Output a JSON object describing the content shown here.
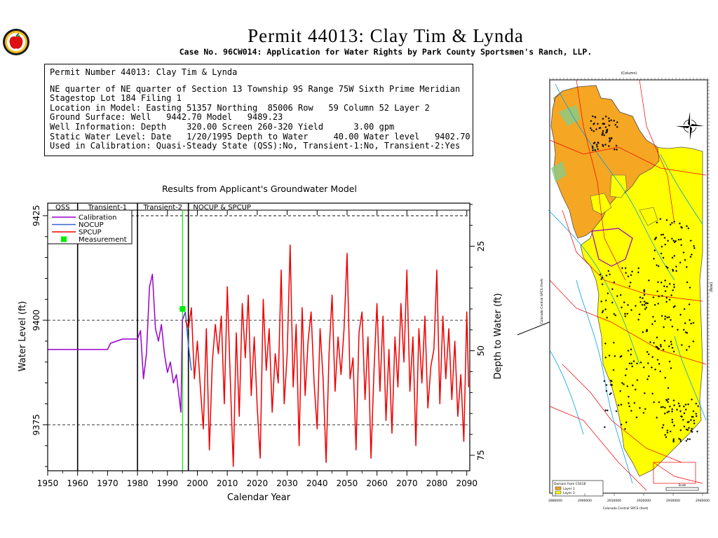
{
  "header": {
    "title": "Permit  44013:   Clay Tim & Lynda",
    "subtitle": "Case No. 96CW014: Application for Water Rights by Park County Sportsmen's Ranch, LLP.",
    "logo_icon": "apple-seal-icon"
  },
  "info_box": {
    "lines": [
      "Permit Number 44013: Clay Tim & Lynda",
      "NE quarter of NE quarter of Section 13 Township 9S Range 75W Sixth Prime Meridian",
      "Stagestop Lot 184 Filing 1",
      "Location in Model: Easting 51357 Northing  85006 Row   59 Column 52 Layer 2",
      "Ground Surface: Well   9442.70 Model   9489.23",
      "Well Information: Depth    320.00 Screen 260-320 Yield      3.00 gpm",
      "Static Water Level: Date   1/20/1995 Depth to Water     40.00 Water level   9402.70",
      "Used in Calibration: Quasi-Steady State (QSS):No, Transient-1:No, Transient-2:Yes"
    ]
  },
  "chart_data": {
    "type": "line",
    "title": "Results from Applicant's Groundwater Model",
    "xlabel": "Calendar Year",
    "ylabel": "Water Level (ft)",
    "ylabel_right": "Depth to Water (ft)",
    "xlim": [
      1950,
      2091
    ],
    "ylim": [
      9364,
      9428
    ],
    "x_ticks": [
      1950,
      1960,
      1970,
      1980,
      1990,
      2000,
      2010,
      2020,
      2030,
      2040,
      2050,
      2060,
      2070,
      2080,
      2090
    ],
    "y_ticks": [
      9375,
      9400,
      9425
    ],
    "y_right_ticks": [
      25,
      50,
      75
    ],
    "ground_surface": 9442.7,
    "period_labels": [
      {
        "label": "QSS",
        "start": 1950,
        "end": 1960
      },
      {
        "label": "Transient-1",
        "start": 1960,
        "end": 1980
      },
      {
        "label": "Transient-2",
        "start": 1980,
        "end": 1997
      },
      {
        "label": "NOCUP  &  SPCUP",
        "start": 1997,
        "end": 2091
      }
    ],
    "period_boundaries": [
      1960,
      1980,
      1997
    ],
    "grid": "dashed at y ticks",
    "legend_position": "top-left",
    "series": [
      {
        "name": "Calibration",
        "color": "#9900cc",
        "points": [
          [
            1950,
            9393
          ],
          [
            1970,
            9393
          ],
          [
            1971,
            9394.5
          ],
          [
            1975,
            9395.5
          ],
          [
            1980,
            9395.5
          ],
          [
            1981,
            9397.5
          ],
          [
            1982,
            9386
          ],
          [
            1983,
            9392
          ],
          [
            1984,
            9408
          ],
          [
            1985,
            9411
          ],
          [
            1986,
            9398
          ],
          [
            1987,
            9395
          ],
          [
            1988,
            9399
          ],
          [
            1989,
            9392
          ],
          [
            1990,
            9387.5
          ],
          [
            1991,
            9390
          ],
          [
            1992,
            9385
          ],
          [
            1993,
            9387
          ],
          [
            1994,
            9381
          ],
          [
            1994.5,
            9378
          ],
          [
            1995,
            9400
          ],
          [
            1996,
            9402
          ]
        ]
      },
      {
        "name": "NOCUP",
        "color": "#3366cc",
        "points": [
          [
            1996,
            9402
          ],
          [
            1997,
            9394
          ],
          [
            1998,
            9388
          ]
        ]
      },
      {
        "name": "SPCUP",
        "color": "#ee0000",
        "points": [
          [
            1996,
            9400
          ],
          [
            1997,
            9398
          ],
          [
            1998,
            9403
          ],
          [
            1999,
            9386
          ],
          [
            2000,
            9395
          ],
          [
            2001,
            9384
          ],
          [
            2002,
            9374
          ],
          [
            2003,
            9398
          ],
          [
            2004,
            9369
          ],
          [
            2005,
            9390
          ],
          [
            2006,
            9399
          ],
          [
            2007,
            9392
          ],
          [
            2008,
            9401
          ],
          [
            2009,
            9380
          ],
          [
            2010,
            9408
          ],
          [
            2011,
            9386
          ],
          [
            2012,
            9365
          ],
          [
            2013,
            9397
          ],
          [
            2014,
            9377
          ],
          [
            2015,
            9404
          ],
          [
            2016,
            9391
          ],
          [
            2017,
            9406
          ],
          [
            2018,
            9382
          ],
          [
            2019,
            9396
          ],
          [
            2020,
            9379
          ],
          [
            2021,
            9367
          ],
          [
            2022,
            9405
          ],
          [
            2023,
            9388
          ],
          [
            2024,
            9398
          ],
          [
            2025,
            9378
          ],
          [
            2026,
            9392
          ],
          [
            2027,
            9385
          ],
          [
            2028,
            9412
          ],
          [
            2029,
            9380
          ],
          [
            2030,
            9392
          ],
          [
            2031,
            9418
          ],
          [
            2032,
            9384
          ],
          [
            2033,
            9399
          ],
          [
            2034,
            9370
          ],
          [
            2035,
            9403
          ],
          [
            2036,
            9382
          ],
          [
            2037,
            9395
          ],
          [
            2038,
            9402
          ],
          [
            2039,
            9385
          ],
          [
            2040,
            9374
          ],
          [
            2041,
            9398
          ],
          [
            2042,
            9386
          ],
          [
            2043,
            9366
          ],
          [
            2044,
            9392
          ],
          [
            2045,
            9406
          ],
          [
            2046,
            9383
          ],
          [
            2047,
            9396
          ],
          [
            2048,
            9387
          ],
          [
            2049,
            9398
          ],
          [
            2050,
            9416
          ],
          [
            2051,
            9386
          ],
          [
            2052,
            9391
          ],
          [
            2053,
            9369
          ],
          [
            2054,
            9397
          ],
          [
            2055,
            9402
          ],
          [
            2056,
            9381
          ],
          [
            2057,
            9396
          ],
          [
            2058,
            9367
          ],
          [
            2059,
            9388
          ],
          [
            2060,
            9404
          ],
          [
            2061,
            9383
          ],
          [
            2062,
            9401
          ],
          [
            2063,
            9376
          ],
          [
            2064,
            9393
          ],
          [
            2065,
            9373
          ],
          [
            2066,
            9396
          ],
          [
            2067,
            9384
          ],
          [
            2068,
            9404
          ],
          [
            2069,
            9390
          ],
          [
            2070,
            9412
          ],
          [
            2071,
            9383
          ],
          [
            2072,
            9396
          ],
          [
            2073,
            9370
          ],
          [
            2074,
            9398
          ],
          [
            2075,
            9385
          ],
          [
            2076,
            9401
          ],
          [
            2077,
            9379
          ],
          [
            2078,
            9389
          ],
          [
            2079,
            9393
          ],
          [
            2080,
            9412
          ],
          [
            2081,
            9380
          ],
          [
            2082,
            9401
          ],
          [
            2083,
            9386
          ],
          [
            2084,
            9398
          ],
          [
            2085,
            9381
          ],
          [
            2086,
            9395
          ],
          [
            2087,
            9377
          ],
          [
            2088,
            9387
          ],
          [
            2089,
            9371
          ],
          [
            2090,
            9402
          ],
          [
            2090.6,
            9384
          ]
        ]
      }
    ],
    "measurement": {
      "name": "Measurement",
      "color": "#00ee00",
      "year": 1995.05,
      "value": 9402.7
    }
  },
  "map": {
    "axis_top_label": "(Column)",
    "axis_left_label": "Colorado Central SPCS (feet)",
    "axis_right_label": "(Row)",
    "axis_bottom_label": "Colorado Central SPCS (feet)",
    "legend_title": "Domain from CSS18",
    "legend_items": [
      "Layer 1",
      "Layer 2"
    ],
    "bottom_ticks": [
      "2880000",
      "2900000",
      "2910000",
      "2920000",
      "2930000",
      "2940000"
    ],
    "scale_label": "Scale",
    "compass_icon": "compass-rose-icon",
    "colors": {
      "layer1": "#f5a623",
      "layer2": "#ffff00",
      "roads": "#ee0000",
      "streams": "#00a0e0"
    }
  }
}
